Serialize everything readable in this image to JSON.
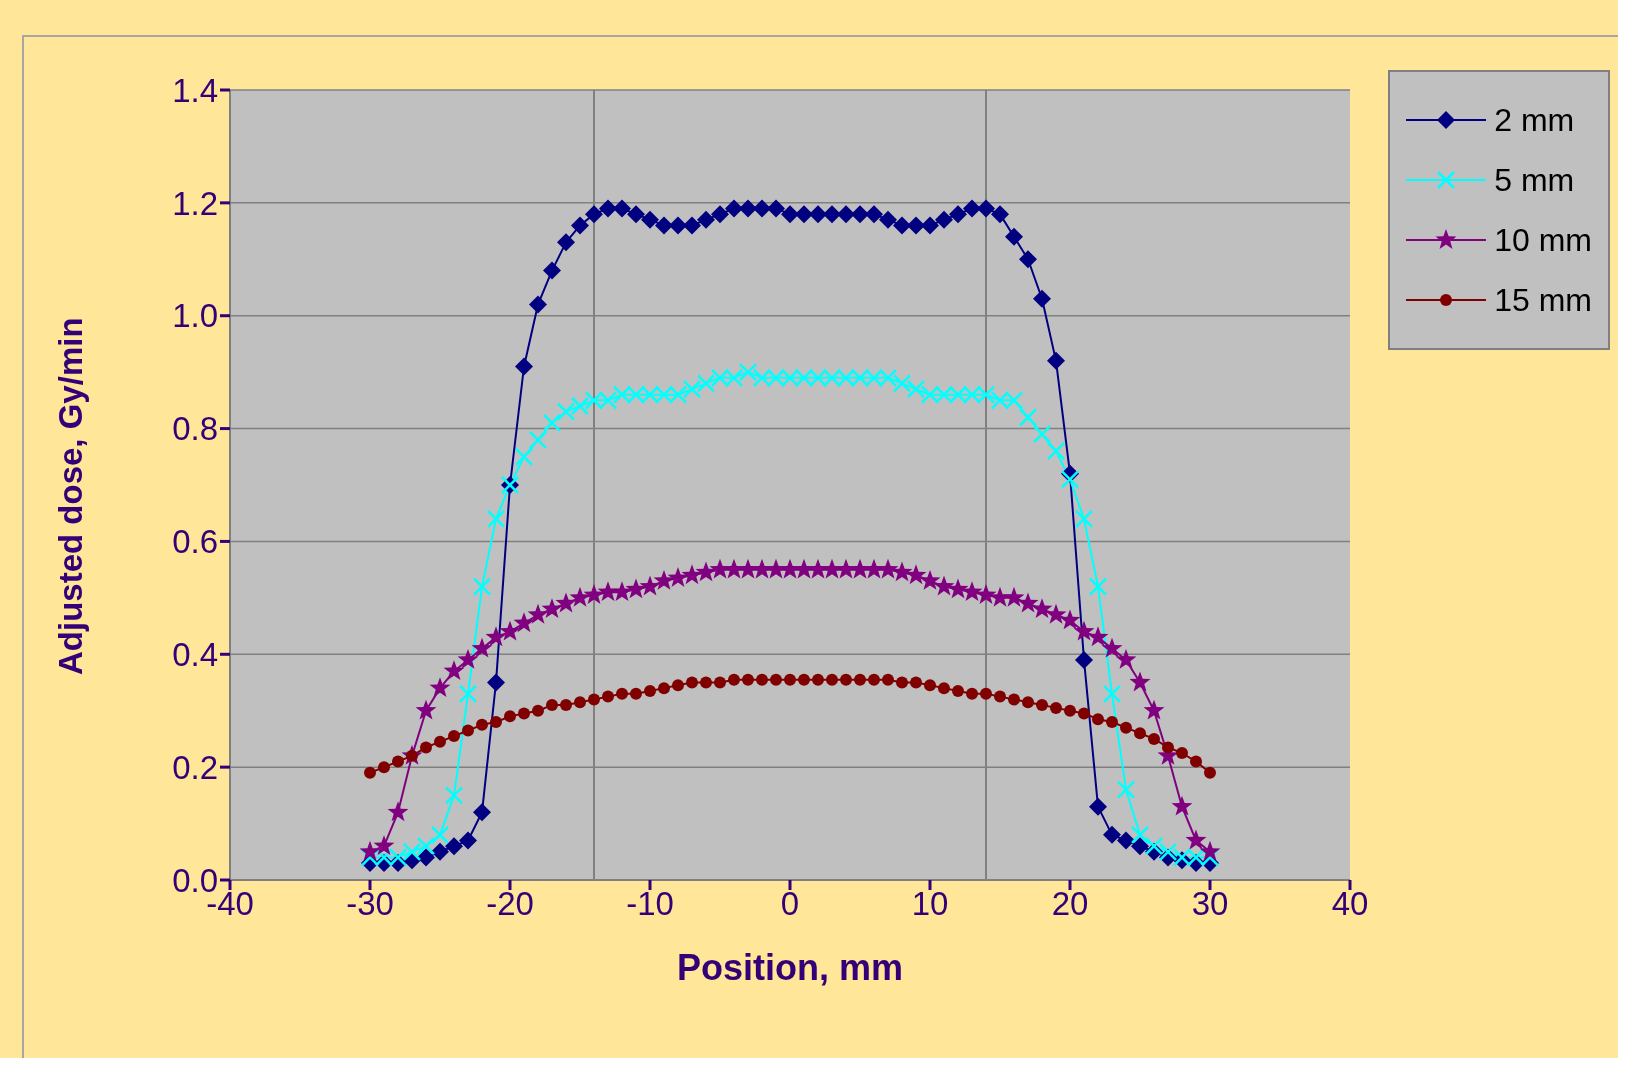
{
  "chart_data": {
    "type": "line",
    "xlabel": "Position, mm",
    "ylabel": "Adjusted dose, Gy/min",
    "x": [
      -30,
      -29,
      -28,
      -27,
      -26,
      -25,
      -24,
      -23,
      -22,
      -21,
      -20,
      -19,
      -18,
      -17,
      -16,
      -15,
      -14,
      -13,
      -12,
      -11,
      -10,
      -9,
      -8,
      -7,
      -6,
      -5,
      -4,
      -3,
      -2,
      -1,
      0,
      1,
      2,
      3,
      4,
      5,
      6,
      7,
      8,
      9,
      10,
      11,
      12,
      13,
      14,
      15,
      16,
      17,
      18,
      19,
      20,
      21,
      22,
      23,
      24,
      25,
      26,
      27,
      28,
      29,
      30
    ],
    "series": [
      {
        "name": "2 mm",
        "color": "#000080",
        "marker": "diamond",
        "values": [
          0.03,
          0.03,
          0.03,
          0.035,
          0.04,
          0.05,
          0.06,
          0.07,
          0.12,
          0.35,
          0.7,
          0.91,
          1.02,
          1.08,
          1.13,
          1.16,
          1.18,
          1.19,
          1.19,
          1.18,
          1.17,
          1.16,
          1.16,
          1.16,
          1.17,
          1.18,
          1.19,
          1.19,
          1.19,
          1.19,
          1.18,
          1.18,
          1.18,
          1.18,
          1.18,
          1.18,
          1.18,
          1.17,
          1.16,
          1.16,
          1.16,
          1.17,
          1.18,
          1.19,
          1.19,
          1.18,
          1.14,
          1.1,
          1.03,
          0.92,
          0.72,
          0.39,
          0.13,
          0.08,
          0.07,
          0.06,
          0.05,
          0.04,
          0.035,
          0.03,
          0.03
        ]
      },
      {
        "name": "5 mm",
        "color": "#00ffff",
        "marker": "cross",
        "values": [
          0.04,
          0.04,
          0.04,
          0.05,
          0.06,
          0.08,
          0.15,
          0.33,
          0.52,
          0.64,
          0.7,
          0.75,
          0.78,
          0.81,
          0.83,
          0.84,
          0.85,
          0.85,
          0.86,
          0.86,
          0.86,
          0.86,
          0.86,
          0.87,
          0.88,
          0.89,
          0.89,
          0.9,
          0.89,
          0.89,
          0.89,
          0.89,
          0.89,
          0.89,
          0.89,
          0.89,
          0.89,
          0.89,
          0.88,
          0.87,
          0.86,
          0.86,
          0.86,
          0.86,
          0.86,
          0.85,
          0.85,
          0.82,
          0.79,
          0.76,
          0.71,
          0.64,
          0.52,
          0.33,
          0.16,
          0.08,
          0.06,
          0.05,
          0.04,
          0.04,
          0.04
        ]
      },
      {
        "name": "10 mm",
        "color": "#800080",
        "marker": "star",
        "values": [
          0.05,
          0.06,
          0.12,
          0.22,
          0.3,
          0.34,
          0.37,
          0.39,
          0.41,
          0.43,
          0.44,
          0.455,
          0.47,
          0.48,
          0.49,
          0.5,
          0.505,
          0.51,
          0.51,
          0.515,
          0.52,
          0.53,
          0.535,
          0.54,
          0.545,
          0.55,
          0.55,
          0.55,
          0.55,
          0.55,
          0.55,
          0.55,
          0.55,
          0.55,
          0.55,
          0.55,
          0.55,
          0.55,
          0.545,
          0.54,
          0.53,
          0.52,
          0.515,
          0.51,
          0.505,
          0.5,
          0.5,
          0.49,
          0.48,
          0.47,
          0.46,
          0.44,
          0.43,
          0.41,
          0.39,
          0.35,
          0.3,
          0.22,
          0.13,
          0.07,
          0.05
        ]
      },
      {
        "name": "15 mm",
        "color": "#800000",
        "marker": "circle",
        "values": [
          0.19,
          0.2,
          0.21,
          0.22,
          0.235,
          0.245,
          0.255,
          0.265,
          0.275,
          0.28,
          0.29,
          0.295,
          0.3,
          0.31,
          0.31,
          0.315,
          0.32,
          0.325,
          0.33,
          0.33,
          0.335,
          0.34,
          0.345,
          0.35,
          0.35,
          0.35,
          0.355,
          0.355,
          0.355,
          0.355,
          0.355,
          0.355,
          0.355,
          0.355,
          0.355,
          0.355,
          0.355,
          0.355,
          0.35,
          0.35,
          0.345,
          0.34,
          0.335,
          0.33,
          0.33,
          0.325,
          0.32,
          0.315,
          0.31,
          0.305,
          0.3,
          0.295,
          0.285,
          0.28,
          0.27,
          0.26,
          0.25,
          0.235,
          0.225,
          0.21,
          0.19
        ]
      }
    ],
    "xlim": [
      -40,
      40
    ],
    "xticks": [
      -40,
      -30,
      -20,
      -10,
      0,
      10,
      20,
      30,
      40
    ],
    "ylim": [
      0,
      1.4
    ],
    "yticks": [
      {
        "value": 0,
        "label": "0.0"
      },
      0.2,
      0.4,
      0.6,
      0.8,
      {
        "value": 1,
        "label": "1.0"
      },
      1.2,
      1.4
    ],
    "ref_lines": [
      {
        "axis": "x",
        "value": -14,
        "color": "#808080"
      },
      {
        "axis": "x",
        "value": 14,
        "color": "#808080"
      }
    ],
    "grid": "y",
    "legend": "top right",
    "line_style": "solid"
  }
}
